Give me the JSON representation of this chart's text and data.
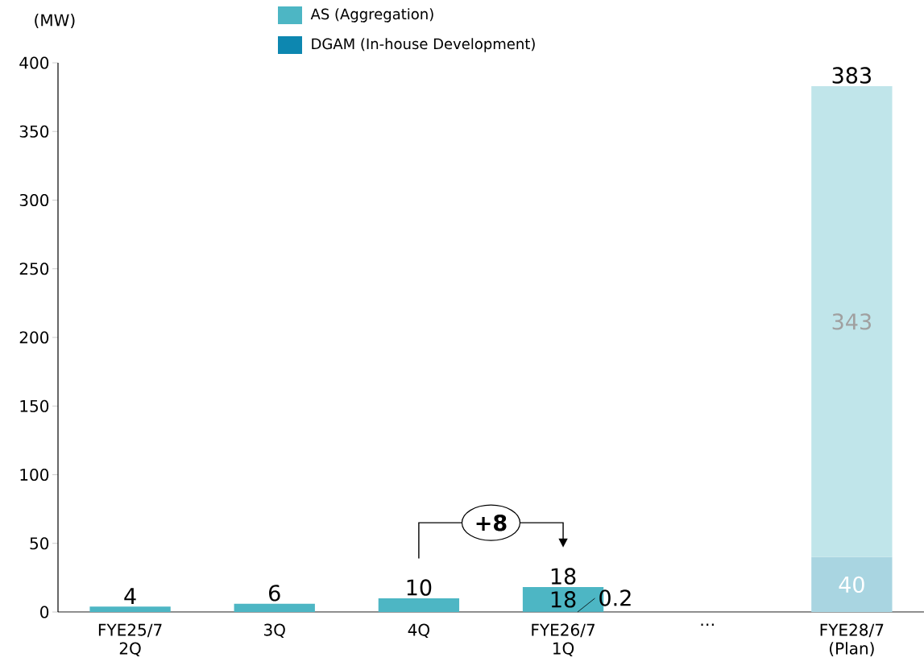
{
  "chart_data": {
    "type": "bar",
    "stacked": true,
    "ylabel": "(MW)",
    "categories": [
      "FYE25/7 2Q",
      "3Q",
      "4Q",
      "FYE26/7 1Q",
      "⋯",
      "FYE28/7 (Plan)"
    ],
    "series": [
      {
        "name": "DGAM (In-house Development)",
        "color": "#0d87b0",
        "colors": [
          null,
          null,
          null,
          "#0d87b0",
          null,
          "#a9d5e1"
        ],
        "values": [
          null,
          null,
          null,
          0.2,
          null,
          40
        ],
        "value_labels": [
          null,
          null,
          null,
          "0.2",
          null,
          "40"
        ]
      },
      {
        "name": "AS (Aggregation)",
        "color": "#4db6c4",
        "colors": [
          "#4db6c4",
          "#4db6c4",
          "#4db6c4",
          "#4db6c4",
          null,
          "#c0e5ea"
        ],
        "values": [
          4,
          6,
          10,
          18,
          null,
          343
        ],
        "value_labels": [
          null,
          null,
          null,
          "18",
          null,
          "343"
        ]
      }
    ],
    "totals": [
      "4",
      "6",
      "10",
      "18",
      null,
      "383"
    ],
    "ylim": [
      0,
      400
    ],
    "yticks": [
      0,
      50,
      100,
      150,
      200,
      250,
      300,
      350,
      400
    ],
    "grid": false,
    "legend": "top",
    "annotations": [
      "+8"
    ]
  }
}
